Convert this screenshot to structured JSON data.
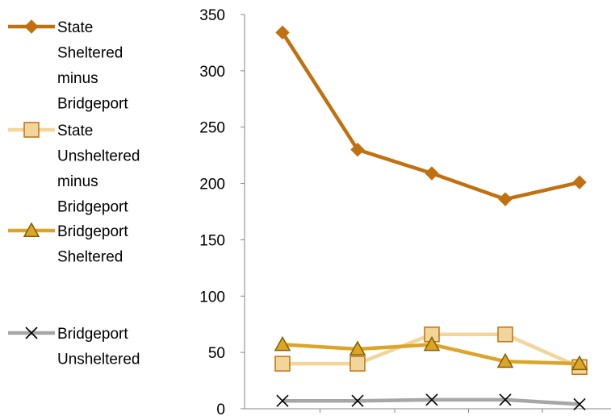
{
  "chart_data": {
    "type": "line",
    "x": [
      1,
      2,
      3,
      4,
      5
    ],
    "ylim": [
      0,
      350
    ],
    "yticks": [
      0,
      50,
      100,
      150,
      200,
      250,
      300,
      350
    ],
    "grid": false,
    "legend_position": "left",
    "series": [
      {
        "name": "State Sheltered minus Bridgeport",
        "label_lines": [
          "State",
          "Sheltered",
          "minus",
          "Bridgeport"
        ],
        "values": [
          334,
          230,
          209,
          186,
          201
        ],
        "color": "#C0700F",
        "marker": "diamond"
      },
      {
        "name": "State Unsheltered minus Bridgeport",
        "label_lines": [
          "State",
          "Unsheltered",
          "minus",
          "Bridgeport"
        ],
        "values": [
          40,
          40,
          66,
          66,
          37
        ],
        "color": "#F2D59B",
        "marker": "square"
      },
      {
        "name": "Bridgeport Sheltered",
        "label_lines": [
          "Bridgeport",
          "Sheltered"
        ],
        "values": [
          57,
          53,
          57,
          42,
          40
        ],
        "color": "#DCA428",
        "marker": "triangle"
      },
      {
        "name": "Bridgeport Unsheltered",
        "label_lines": [
          "Bridgeport",
          "Unsheltered"
        ],
        "values": [
          7,
          7,
          8,
          8,
          4
        ],
        "color": "#A6A6A6",
        "marker": "x"
      }
    ]
  }
}
